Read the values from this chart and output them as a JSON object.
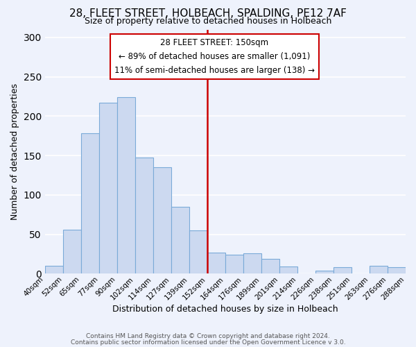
{
  "title": "28, FLEET STREET, HOLBEACH, SPALDING, PE12 7AF",
  "subtitle": "Size of property relative to detached houses in Holbeach",
  "xlabel": "Distribution of detached houses by size in Holbeach",
  "ylabel": "Number of detached properties",
  "tick_labels": [
    "40sqm",
    "52sqm",
    "65sqm",
    "77sqm",
    "90sqm",
    "102sqm",
    "114sqm",
    "127sqm",
    "139sqm",
    "152sqm",
    "164sqm",
    "176sqm",
    "189sqm",
    "201sqm",
    "214sqm",
    "226sqm",
    "238sqm",
    "251sqm",
    "263sqm",
    "276sqm",
    "288sqm"
  ],
  "bar_values": [
    10,
    56,
    178,
    217,
    224,
    147,
    135,
    85,
    55,
    27,
    24,
    26,
    19,
    9,
    0,
    4,
    8,
    0,
    10,
    8
  ],
  "bar_color": "#ccd9f0",
  "bar_edge_color": "#7aaad8",
  "vline_tick_index": 9,
  "vline_color": "#cc0000",
  "annotation_title": "28 FLEET STREET: 150sqm",
  "annotation_line1": "← 89% of detached houses are smaller (1,091)",
  "annotation_line2": "11% of semi-detached houses are larger (138) →",
  "annotation_box_color": "#ffffff",
  "annotation_box_edge": "#cc0000",
  "ylim": [
    0,
    310
  ],
  "yticks": [
    0,
    50,
    100,
    150,
    200,
    250,
    300
  ],
  "footer1": "Contains HM Land Registry data © Crown copyright and database right 2024.",
  "footer2": "Contains public sector information licensed under the Open Government Licence v 3.0.",
  "background_color": "#eef2fc",
  "grid_color": "#ffffff"
}
